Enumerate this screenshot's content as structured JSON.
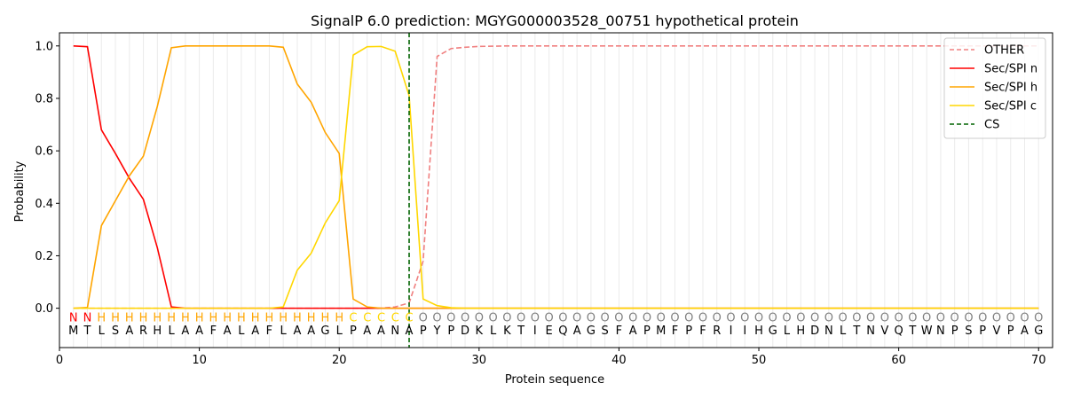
{
  "chart_data": {
    "type": "line",
    "title": "SignalP 6.0 prediction: MGYG000003528_00751 hypothetical protein",
    "xlabel": "Protein sequence",
    "ylabel": "Probability",
    "xlim": [
      0,
      71
    ],
    "ylim": [
      -0.15,
      1.05
    ],
    "xticks": [
      0,
      10,
      20,
      30,
      40,
      50,
      60,
      70
    ],
    "yticks": [
      0.0,
      0.2,
      0.4,
      0.6,
      0.8,
      1.0
    ],
    "ytick_labels": [
      "0.0",
      "0.2",
      "0.4",
      "0.6",
      "0.8",
      "1.0"
    ],
    "legend_position": "top-right",
    "cleavage_site": 25,
    "sequence": [
      "M",
      "T",
      "L",
      "S",
      "A",
      "R",
      "H",
      "L",
      "A",
      "A",
      "F",
      "A",
      "L",
      "A",
      "F",
      "L",
      "A",
      "A",
      "G",
      "L",
      "P",
      "A",
      "A",
      "N",
      "A",
      "P",
      "Y",
      "P",
      "D",
      "K",
      "L",
      "K",
      "T",
      "I",
      "E",
      "Q",
      "A",
      "G",
      "S",
      "F",
      "A",
      "P",
      "M",
      "F",
      "P",
      "F",
      "R",
      "I",
      "I",
      "H",
      "G",
      "L",
      "H",
      "D",
      "N",
      "L",
      "T",
      "N",
      "V",
      "Q",
      "T",
      "W",
      "N",
      "P",
      "S",
      "P",
      "V",
      "P",
      "A",
      "G"
    ],
    "labels": [
      "N",
      "N",
      "H",
      "H",
      "H",
      "H",
      "H",
      "H",
      "H",
      "H",
      "H",
      "H",
      "H",
      "H",
      "H",
      "H",
      "H",
      "H",
      "H",
      "H",
      "C",
      "C",
      "C",
      "C",
      "C",
      "O",
      "O",
      "O",
      "O",
      "O",
      "O",
      "O",
      "O",
      "O",
      "O",
      "O",
      "O",
      "O",
      "O",
      "O",
      "O",
      "O",
      "O",
      "O",
      "O",
      "O",
      "O",
      "O",
      "O",
      "O",
      "O",
      "O",
      "O",
      "O",
      "O",
      "O",
      "O",
      "O",
      "O",
      "O",
      "O",
      "O",
      "O",
      "O",
      "O",
      "O",
      "O",
      "O",
      "O",
      "O"
    ],
    "label_colors": {
      "N": "#ff0000",
      "H": "#ffa500",
      "C": "#ffd700",
      "O": "#808080"
    },
    "series": [
      {
        "name": "OTHER",
        "color": "#f08080",
        "dash": true,
        "values": [
          0,
          0,
          0,
          0,
          0,
          0,
          0,
          0,
          0,
          0,
          0,
          0,
          0,
          0,
          0,
          0,
          0,
          0,
          0,
          0,
          0,
          0,
          0,
          0.005,
          0.02,
          0.18,
          0.96,
          0.99,
          0.995,
          0.998,
          0.999,
          1,
          1,
          1,
          1,
          1,
          1,
          1,
          1,
          1,
          1,
          1,
          1,
          1,
          1,
          1,
          1,
          1,
          1,
          1,
          1,
          1,
          1,
          1,
          1,
          1,
          1,
          1,
          1,
          1,
          1,
          1,
          1,
          1,
          1,
          1,
          1,
          1,
          1,
          1
        ]
      },
      {
        "name": "Sec/SPI n",
        "color": "#ff0000",
        "dash": false,
        "values": [
          1.0,
          0.997,
          0.68,
          0.59,
          0.495,
          0.415,
          0.23,
          0.005,
          0,
          0,
          0,
          0,
          0,
          0,
          0,
          0,
          0,
          0,
          0,
          0,
          0,
          0,
          0,
          0,
          0,
          0,
          0,
          0,
          0,
          0,
          0,
          0,
          0,
          0,
          0,
          0,
          0,
          0,
          0,
          0,
          0,
          0,
          0,
          0,
          0,
          0,
          0,
          0,
          0,
          0,
          0,
          0,
          0,
          0,
          0,
          0,
          0,
          0,
          0,
          0,
          0,
          0,
          0,
          0,
          0,
          0,
          0,
          0,
          0,
          0
        ]
      },
      {
        "name": "Sec/SPI h",
        "color": "#ffa500",
        "dash": false,
        "values": [
          0,
          0.003,
          0.315,
          0.41,
          0.505,
          0.58,
          0.77,
          0.993,
          1.0,
          1.0,
          1.0,
          1.0,
          1.0,
          1.0,
          1.0,
          0.995,
          0.855,
          0.785,
          0.67,
          0.59,
          0.035,
          0.005,
          0,
          0,
          0,
          0,
          0,
          0,
          0,
          0,
          0,
          0,
          0,
          0,
          0,
          0,
          0,
          0,
          0,
          0,
          0,
          0,
          0,
          0,
          0,
          0,
          0,
          0,
          0,
          0,
          0,
          0,
          0,
          0,
          0,
          0,
          0,
          0,
          0,
          0,
          0,
          0,
          0,
          0,
          0,
          0,
          0,
          0,
          0,
          0
        ]
      },
      {
        "name": "Sec/SPI c",
        "color": "#ffd700",
        "dash": false,
        "values": [
          0,
          0,
          0,
          0,
          0,
          0,
          0,
          0,
          0,
          0,
          0,
          0,
          0,
          0,
          0,
          0.005,
          0.145,
          0.21,
          0.325,
          0.41,
          0.965,
          0.997,
          0.998,
          0.98,
          0.81,
          0.035,
          0.01,
          0.002,
          0,
          0,
          0,
          0,
          0,
          0,
          0,
          0,
          0,
          0,
          0,
          0,
          0,
          0,
          0,
          0,
          0,
          0,
          0,
          0,
          0,
          0,
          0,
          0,
          0,
          0,
          0,
          0,
          0,
          0,
          0,
          0,
          0,
          0,
          0,
          0,
          0,
          0,
          0,
          0,
          0,
          0
        ]
      }
    ],
    "cs_legend": {
      "name": "CS",
      "color": "#006400"
    }
  }
}
